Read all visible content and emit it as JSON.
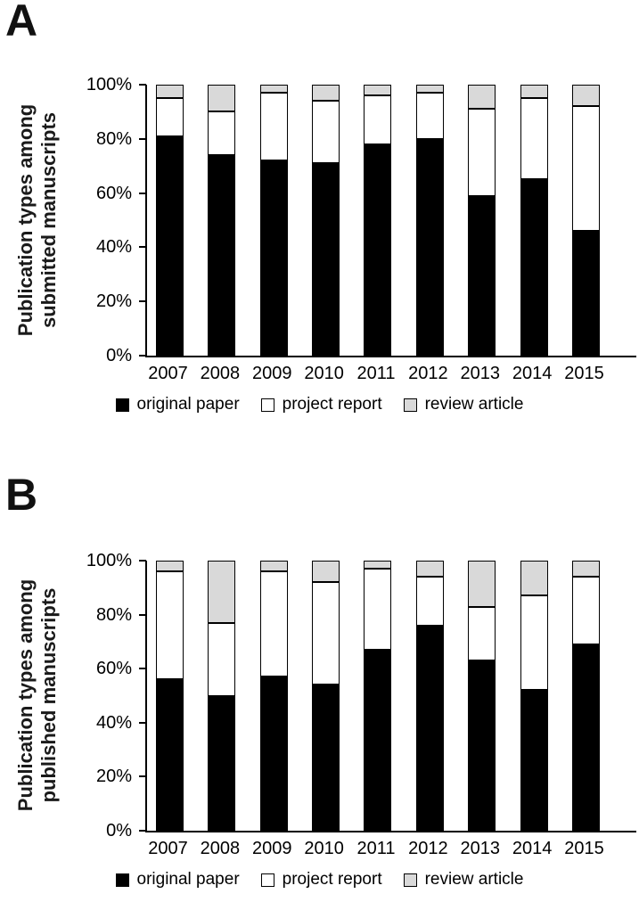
{
  "figure": {
    "background": "#ffffff",
    "axis_color": "#000000"
  },
  "chart_data": [
    {
      "type": "bar",
      "stacked": true,
      "percent_stacked": true,
      "panel_label": "A",
      "ylabel": "Publication types among submitted manuscripts",
      "ylabel_lines": [
        "Publication types among",
        "submitted manuscripts"
      ],
      "categories": [
        "2007",
        "2008",
        "2009",
        "2010",
        "2011",
        "2012",
        "2013",
        "2014",
        "2015"
      ],
      "series": [
        {
          "name": "original paper",
          "color": "#000000",
          "values": [
            81,
            74,
            72,
            71,
            78,
            80,
            59,
            65,
            46
          ]
        },
        {
          "name": "project report",
          "color": "#ffffff",
          "values": [
            14,
            16,
            25,
            23,
            18,
            17,
            32,
            30,
            46
          ]
        },
        {
          "name": "review article",
          "color": "#d9d9d9",
          "values": [
            5,
            10,
            3,
            6,
            4,
            3,
            9,
            5,
            8
          ]
        }
      ],
      "ylim": [
        0,
        100
      ],
      "ytick_labels": [
        "0%",
        "20%",
        "40%",
        "60%",
        "80%",
        "100%"
      ],
      "legend_position": "bottom",
      "grid": false
    },
    {
      "type": "bar",
      "stacked": true,
      "percent_stacked": true,
      "panel_label": "B",
      "ylabel": "Publication types among published manuscripts",
      "ylabel_lines": [
        "Publication types among",
        "published manuscripts"
      ],
      "categories": [
        "2007",
        "2008",
        "2009",
        "2010",
        "2011",
        "2012",
        "2013",
        "2014",
        "2015"
      ],
      "series": [
        {
          "name": "original paper",
          "color": "#000000",
          "values": [
            56,
            50,
            57,
            54,
            67,
            76,
            63,
            52,
            69
          ]
        },
        {
          "name": "project report",
          "color": "#ffffff",
          "values": [
            40,
            27,
            39,
            38,
            30,
            18,
            20,
            35,
            25
          ]
        },
        {
          "name": "review article",
          "color": "#d9d9d9",
          "values": [
            4,
            23,
            4,
            8,
            3,
            6,
            17,
            13,
            6
          ]
        }
      ],
      "ylim": [
        0,
        100
      ],
      "ytick_labels": [
        "0%",
        "20%",
        "40%",
        "60%",
        "80%",
        "100%"
      ],
      "legend_position": "bottom",
      "grid": false
    }
  ]
}
